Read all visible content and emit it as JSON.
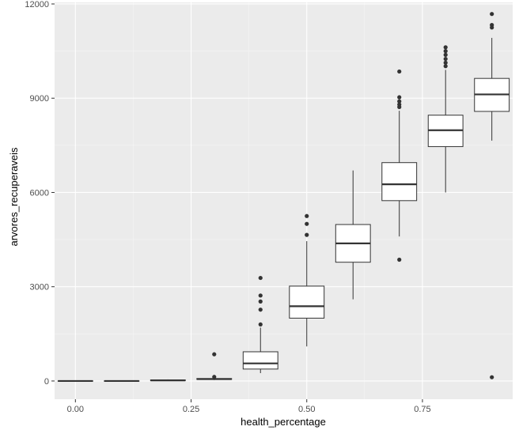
{
  "chart_data": {
    "type": "boxplot",
    "title": "",
    "xlabel": "health_percentage",
    "ylabel": "arvores_recuperaveis",
    "xlim": [
      -0.045,
      0.945
    ],
    "ylim": [
      -580,
      12050
    ],
    "x_ticks": [
      0.0,
      0.25,
      0.5,
      0.75
    ],
    "x_tick_labels": [
      "0.00",
      "0.25",
      "0.50",
      "0.75"
    ],
    "y_ticks": [
      0,
      3000,
      6000,
      9000,
      12000
    ],
    "y_tick_labels": [
      "0",
      "3000",
      "6000",
      "9000",
      "12000"
    ],
    "box_width": 0.075,
    "grid": true,
    "legend": "none",
    "colors": {
      "panel_background": "#ebebeb",
      "grid_major": "#ffffff",
      "grid_minor": "#f5f5f5",
      "box_fill": "#ffffff",
      "box_stroke": "#333333",
      "outlier": "#333333"
    },
    "boxes": [
      {
        "x": 0.0,
        "min": 0,
        "q1": 0,
        "median": 0,
        "q3": 5,
        "max": 10,
        "outliers": []
      },
      {
        "x": 0.1,
        "min": 0,
        "q1": 0,
        "median": 0,
        "q3": 5,
        "max": 10,
        "outliers": []
      },
      {
        "x": 0.2,
        "min": 5,
        "q1": 10,
        "median": 20,
        "q3": 35,
        "max": 50,
        "outliers": []
      },
      {
        "x": 0.3,
        "min": 30,
        "q1": 50,
        "median": 60,
        "q3": 80,
        "max": 100,
        "outliers": [
          850,
          130
        ]
      },
      {
        "x": 0.4,
        "min": 250,
        "q1": 380,
        "median": 560,
        "q3": 930,
        "max": 1700,
        "outliers": [
          3280,
          2720,
          2530,
          2270,
          1800
        ]
      },
      {
        "x": 0.5,
        "min": 1100,
        "q1": 2000,
        "median": 2380,
        "q3": 3020,
        "max": 4450,
        "outliers": [
          5250,
          5000,
          4650
        ]
      },
      {
        "x": 0.6,
        "min": 2600,
        "q1": 3780,
        "median": 4380,
        "q3": 4980,
        "max": 6700,
        "outliers": []
      },
      {
        "x": 0.7,
        "min": 4600,
        "q1": 5740,
        "median": 6260,
        "q3": 6950,
        "max": 8600,
        "outliers": [
          9850,
          9030,
          8900,
          8800,
          8720,
          3860
        ]
      },
      {
        "x": 0.8,
        "min": 6000,
        "q1": 7460,
        "median": 7980,
        "q3": 8460,
        "max": 9900,
        "outliers": [
          10620,
          10500,
          10380,
          10250,
          10130,
          10020
        ]
      },
      {
        "x": 0.9,
        "min": 7650,
        "q1": 8580,
        "median": 9120,
        "q3": 9630,
        "max": 10920,
        "outliers": [
          11680,
          11330,
          11250,
          120
        ]
      }
    ]
  }
}
